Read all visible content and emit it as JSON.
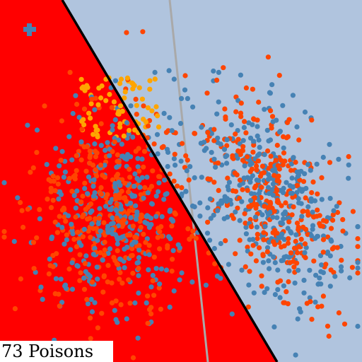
{
  "status": {
    "poison_label": "73 Poisons",
    "poison_count": 73
  },
  "icons": {
    "target_marker": "plus-icon"
  },
  "colors": {
    "background": "#b0c4de",
    "red_region": "#ff0000",
    "blue_points": "#4682b4",
    "orange_points": "#ff4500",
    "poison_points": "#ffa500",
    "decision_boundary": "#000000",
    "reference_boundary": "#a9a9a9",
    "marker": "#4682b4"
  },
  "chart_data": {
    "type": "scatter",
    "series": [
      {
        "color": "#4682b4",
        "count": 700
      },
      {
        "color": "#ff4500",
        "count": 700
      },
      {
        "color": "#ffa500",
        "count": 73
      }
    ],
    "grid": false
  }
}
